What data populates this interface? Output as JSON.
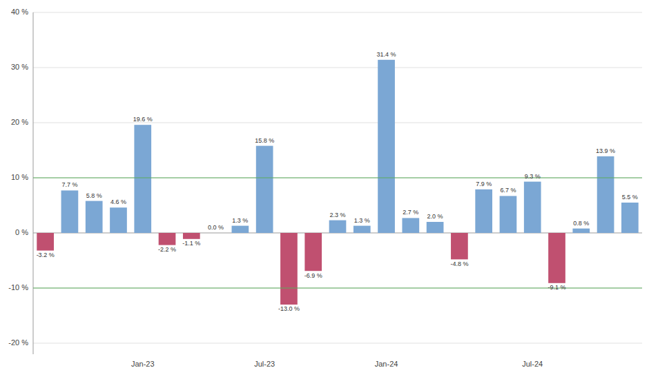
{
  "chart_data": {
    "type": "bar",
    "categories": [
      null,
      null,
      null,
      null,
      "Jan-23",
      null,
      null,
      null,
      null,
      "Jul-23",
      null,
      null,
      null,
      null,
      "Jan-24",
      null,
      null,
      null,
      null,
      null,
      "Jul-24",
      null,
      null,
      null,
      null
    ],
    "values": [
      -3.2,
      7.7,
      5.8,
      4.6,
      19.6,
      -2.2,
      -1.1,
      0.0,
      1.3,
      15.8,
      -13.0,
      -6.9,
      2.3,
      1.3,
      31.4,
      2.7,
      2.0,
      -4.8,
      7.9,
      6.7,
      9.3,
      -9.1,
      0.8,
      13.9,
      5.5
    ],
    "value_labels": [
      "-3.2 %",
      "7.7 %",
      "5.8 %",
      "4.6 %",
      "19.6 %",
      "-2.2 %",
      "-1.1 %",
      "0.0 %",
      "1.3 %",
      "15.8 %",
      "-13.0 %",
      "-6.9 %",
      "2.3 %",
      "1.3 %",
      "31.4 %",
      "2.7 %",
      "2.0 %",
      "-4.8 %",
      "7.9 %",
      "6.7 %",
      "9.3 %",
      "-9.1 %",
      "0.8 %",
      "13.9 %",
      "5.5 %"
    ],
    "colors": [
      "#C05070",
      "#7BA7D4",
      "#7BA7D4",
      "#7BA7D4",
      "#7BA7D4",
      "#C05070",
      "#C05070",
      "#7BA7D4",
      "#7BA7D4",
      "#7BA7D4",
      "#C05070",
      "#C05070",
      "#7BA7D4",
      "#7BA7D4",
      "#7BA7D4",
      "#7BA7D4",
      "#7BA7D4",
      "#C05070",
      "#7BA7D4",
      "#7BA7D4",
      "#7BA7D4",
      "#C05070",
      "#7BA7D4",
      "#7BA7D4",
      "#7BA7D4"
    ],
    "ylim": [
      -22,
      40
    ],
    "yticks": [
      {
        "value": -20,
        "label": "-20 %"
      },
      {
        "value": -10,
        "label": "-10 %"
      },
      {
        "value": 0,
        "label": "0 %"
      },
      {
        "value": 10,
        "label": "10 %"
      },
      {
        "value": 20,
        "label": "20 %"
      },
      {
        "value": 30,
        "label": "30 %"
      },
      {
        "value": 40,
        "label": "40 %"
      }
    ],
    "reference_lines": [
      {
        "value": 10,
        "color": "#5AAB5A"
      },
      {
        "value": -10,
        "color": "#5AAB5A"
      }
    ],
    "grid": true,
    "data_labels": true
  }
}
